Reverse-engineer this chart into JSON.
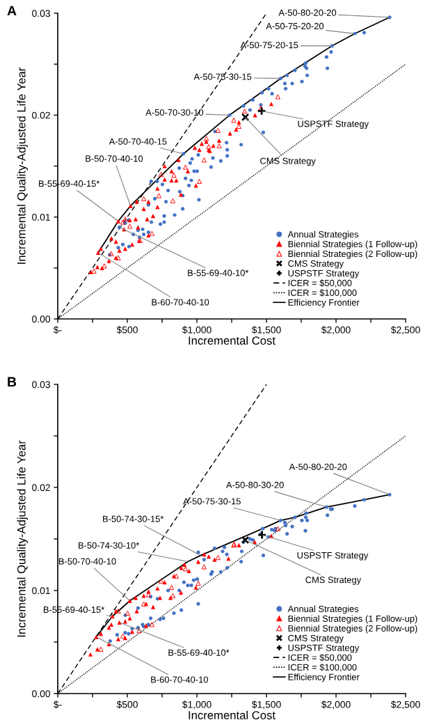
{
  "chart_data": [
    {
      "type": "scatter",
      "title": "A",
      "xlabel": "Incremental Cost",
      "ylabel": "Incremental Quality-Adjusted Life Year",
      "xlim": [
        0,
        2500
      ],
      "ylim": [
        0,
        0.03
      ],
      "xticks": [
        {
          "value": 0,
          "label": "$-"
        },
        {
          "value": 250,
          "label": null
        },
        {
          "value": 500,
          "label": "$500"
        },
        {
          "value": 750,
          "label": null
        },
        {
          "value": 1000,
          "label": "$1,000"
        },
        {
          "value": 1250,
          "label": null
        },
        {
          "value": 1500,
          "label": "$1,500"
        },
        {
          "value": 1750,
          "label": null
        },
        {
          "value": 2000,
          "label": "$2,000"
        },
        {
          "value": 2250,
          "label": null
        },
        {
          "value": 2500,
          "label": "$2,500"
        }
      ],
      "yticks": [
        {
          "value": 0,
          "label": "0.00"
        },
        {
          "value": 0.005,
          "label": null
        },
        {
          "value": 0.01,
          "label": "0.01"
        },
        {
          "value": 0.015,
          "label": null
        },
        {
          "value": 0.02,
          "label": "0.02"
        },
        {
          "value": 0.025,
          "label": null
        },
        {
          "value": 0.03,
          "label": "0.03"
        }
      ],
      "grid": false,
      "legend": "bottom right",
      "series": [
        {
          "name": "Annual Strategies",
          "marker": "circle",
          "color": "#4472c4",
          "x": [
            2385,
            2135,
            2202,
            1972,
            1965,
            1932,
            1938,
            1782,
            1777,
            1788,
            1705,
            1647,
            1602,
            1632,
            1685,
            1638,
            1793,
            1755,
            1515,
            1468,
            1540,
            1402,
            1460,
            1335,
            1382,
            1235,
            1477,
            1318,
            1218,
            1172,
            1213,
            1218,
            1130,
            1115,
            903,
            965,
            1010,
            1102,
            1002,
            980,
            873,
            952,
            918,
            960,
            943,
            793,
            752,
            877,
            898,
            1015,
            778,
            898,
            840,
            765,
            765,
            738,
            673,
            672,
            715,
            698,
            652,
            610,
            652,
            618,
            577,
            543,
            588,
            485,
            510,
            443,
            435,
            468,
            512,
            373
          ],
          "values": [
            0.0296,
            0.028,
            0.0281,
            0.0268,
            0.0262,
            0.0257,
            0.0246,
            0.0251,
            0.0248,
            0.0246,
            0.0244,
            0.0239,
            0.0236,
            0.0231,
            0.0231,
            0.0226,
            0.0239,
            0.0233,
            0.0226,
            0.0222,
            0.0221,
            0.0215,
            0.021,
            0.0209,
            0.0205,
            0.02,
            0.0183,
            0.0171,
            0.016,
            0.0155,
            0.0173,
            0.0166,
            0.0184,
            0.0158,
            0.0162,
            0.0157,
            0.0161,
            0.0149,
            0.0145,
            0.0145,
            0.0148,
            0.0153,
            0.0138,
            0.0136,
            0.0131,
            0.0126,
            0.0132,
            0.0125,
            0.0121,
            0.0117,
            0.0115,
            0.0108,
            0.0102,
            0.0101,
            0.0095,
            0.0093,
            0.0095,
            0.0135,
            0.0135,
            0.0118,
            0.0112,
            0.0088,
            0.0085,
            0.0083,
            0.0087,
            0.0083,
            0.008,
            0.0094,
            0.0097,
            0.009,
            0.007,
            0.0073,
            0.0071,
            0.0063
          ]
        },
        {
          "name": "Biennial Strategies (1 Follow-up)",
          "marker": "triangle",
          "color": "#ff0000",
          "x": [
            238,
            285,
            318,
            290,
            310,
            385,
            418,
            443,
            485,
            435,
            477,
            518,
            560,
            523,
            568,
            618,
            652,
            717,
            768,
            818,
            868,
            852,
            885,
            993,
            935,
            717,
            643,
            577,
            652,
            535,
            585,
            1068,
            1018,
            1093,
            1118,
            768,
            818,
            685,
            418,
            368,
            1535,
            1418,
            1302,
            1238,
            1282,
            1160,
            1085,
            985,
            1035
          ],
          "values": [
            0.0046,
            0.0051,
            0.005,
            0.0065,
            0.0069,
            0.0079,
            0.006,
            0.0067,
            0.0069,
            0.0096,
            0.0088,
            0.0097,
            0.0098,
            0.0111,
            0.0115,
            0.0108,
            0.0115,
            0.0128,
            0.0137,
            0.0136,
            0.0156,
            0.0136,
            0.0122,
            0.0131,
            0.0145,
            0.011,
            0.0098,
            0.009,
            0.0082,
            0.0073,
            0.0077,
            0.0174,
            0.0166,
            0.0165,
            0.017,
            0.015,
            0.0145,
            0.0101,
            0.0076,
            0.0057,
            0.0211,
            0.02,
            0.0193,
            0.0182,
            0.0186,
            0.0175,
            0.0166,
            0.0168,
            0.0172
          ]
        },
        {
          "name": "Biennial Strategies (2 Follow-up)",
          "marker": "triangle-open",
          "color": "#ff0000",
          "x": [
            1582,
            1460,
            1343,
            1265,
            1302,
            1152,
            1068,
            1085,
            1160,
            1052,
            1018,
            918,
            835,
            827,
            727,
            677,
            592,
            518,
            468,
            435,
            385,
            335,
            260,
            485,
            618,
            743
          ],
          "values": [
            0.0218,
            0.0207,
            0.0204,
            0.0195,
            0.0189,
            0.0185,
            0.0177,
            0.0169,
            0.017,
            0.0156,
            0.0135,
            0.0149,
            0.0141,
            0.0116,
            0.0121,
            0.0084,
            0.0077,
            0.0091,
            0.0095,
            0.006,
            0.0064,
            0.0052,
            0.0047,
            0.0098,
            0.0118,
            0.0142
          ]
        },
        {
          "name": "CMS Strategy",
          "marker": "cross",
          "color": "#000000",
          "x": [
            1348
          ],
          "values": [
            0.0198
          ]
        },
        {
          "name": "USPSTF Strategy",
          "marker": "plus",
          "color": "#000000",
          "x": [
            1465
          ],
          "values": [
            0.0204
          ]
        },
        {
          "name": "ICER = $50,000",
          "type": "line",
          "marker": "none",
          "line_style": "dashed",
          "color": "#000000",
          "x": [
            0,
            1500
          ],
          "values": [
            0,
            0.03
          ]
        },
        {
          "name": "ICER = $100,000",
          "type": "line",
          "marker": "none",
          "line_style": "dotted",
          "color": "#000000",
          "x": [
            0,
            2500
          ],
          "values": [
            0,
            0.025
          ]
        },
        {
          "name": "Efficiency Frontier",
          "type": "line",
          "marker": "none",
          "line_style": "solid",
          "color": "#000000",
          "x": [
            290,
            435,
            523,
            903,
            1235,
            1602,
            1972,
            2135,
            2385
          ],
          "values": [
            0.0065,
            0.0096,
            0.0111,
            0.0162,
            0.02,
            0.0236,
            0.0268,
            0.028,
            0.0296
          ]
        }
      ],
      "annotations": [
        {
          "text": "A-50-80-20-20",
          "x": 2385,
          "y": 0.0296
        },
        {
          "text": "A-50-75-20-20",
          "x": 2135,
          "y": 0.028
        },
        {
          "text": "A-50-75-20-15",
          "x": 1972,
          "y": 0.0268
        },
        {
          "text": "A-50-75-30-15",
          "x": 1602,
          "y": 0.0236
        },
        {
          "text": "A-50-70-30-10",
          "x": 1235,
          "y": 0.02
        },
        {
          "text": "A-50-70-40-15",
          "x": 903,
          "y": 0.0162
        },
        {
          "text": "USPSTF Strategy",
          "x": 1465,
          "y": 0.0204
        },
        {
          "text": "CMS Strategy",
          "x": 1348,
          "y": 0.0198
        },
        {
          "text": "B-50-70-40-10",
          "x": 523,
          "y": 0.0111
        },
        {
          "text": "B-55-69-40-15*",
          "x": 435,
          "y": 0.0096
        },
        {
          "text": "B-55-69-40-10*",
          "x": 443,
          "y": 0.009
        },
        {
          "text": "B-60-70-40-10",
          "x": 290,
          "y": 0.0065
        }
      ]
    },
    {
      "type": "scatter",
      "title": "B",
      "xlabel": "Incremental Cost",
      "ylabel": "Incremental Quality-Adjusted Life Year",
      "xlim": [
        0,
        2500
      ],
      "ylim": [
        0,
        0.03
      ],
      "xticks": [
        {
          "value": 0,
          "label": "$-"
        },
        {
          "value": 250,
          "label": null
        },
        {
          "value": 500,
          "label": "$500"
        },
        {
          "value": 750,
          "label": null
        },
        {
          "value": 1000,
          "label": "$1,000"
        },
        {
          "value": 1250,
          "label": null
        },
        {
          "value": 1500,
          "label": "$1,500"
        },
        {
          "value": 1750,
          "label": null
        },
        {
          "value": 2000,
          "label": "$2,000"
        },
        {
          "value": 2250,
          "label": null
        },
        {
          "value": 2500,
          "label": "$2,500"
        }
      ],
      "yticks": [
        {
          "value": 0,
          "label": "0.00"
        },
        {
          "value": 0.005,
          "label": null
        },
        {
          "value": 0.01,
          "label": "0.01"
        },
        {
          "value": 0.015,
          "label": null
        },
        {
          "value": 0.02,
          "label": "0.02"
        },
        {
          "value": 0.025,
          "label": null
        },
        {
          "value": 0.03,
          "label": "0.03"
        }
      ],
      "grid": false,
      "legend": "bottom right",
      "series": [
        {
          "name": "Annual Strategies",
          "marker": "circle",
          "color": "#4472c4",
          "x": [
            2385,
            2202,
            2135,
            1932,
            1962,
            1972,
            1938,
            1785,
            1705,
            1782,
            1793,
            1755,
            1780,
            1602,
            1632,
            1638,
            1685,
            1648,
            1538,
            1565,
            1560,
            1472,
            1515,
            1402,
            1335,
            1382,
            1460,
            1198,
            1127,
            1477,
            1318,
            1322,
            1218,
            1172,
            1215,
            1185,
            1110,
            1102,
            1002,
            977,
            960,
            935,
            907,
            873,
            888,
            835,
            1010,
            793,
            760,
            735,
            668,
            652,
            610,
            618,
            577,
            535,
            485,
            510,
            427,
            377,
            485,
            577,
            668,
            717,
            1010,
            1052
          ],
          "values": [
            0.0193,
            0.0188,
            0.0182,
            0.0181,
            0.0179,
            0.0179,
            0.0173,
            0.0175,
            0.0171,
            0.0171,
            0.0168,
            0.0168,
            0.0158,
            0.0168,
            0.0166,
            0.0163,
            0.0162,
            0.0155,
            0.0159,
            0.016,
            0.0158,
            0.016,
            0.0152,
            0.0149,
            0.0147,
            0.015,
            0.0155,
            0.0142,
            0.0141,
            0.0134,
            0.0128,
            0.0138,
            0.0122,
            0.0118,
            0.0135,
            0.0138,
            0.0118,
            0.0116,
            0.0111,
            0.011,
            0.0105,
            0.0105,
            0.0108,
            0.01,
            0.0081,
            0.0078,
            0.0087,
            0.01,
            0.0073,
            0.0072,
            0.0073,
            0.0067,
            0.0067,
            0.0065,
            0.0064,
            0.0063,
            0.0059,
            0.0058,
            0.0057,
            0.0051,
            0.0076,
            0.0083,
            0.0094,
            0.0092,
            0.0137,
            0.013
          ]
        },
        {
          "name": "Biennial Strategies (1 Follow-up)",
          "marker": "triangle",
          "color": "#ff0000",
          "x": [
            235,
            285,
            277,
            310,
            368,
            393,
            418,
            518,
            560,
            618,
            652,
            717,
            768,
            835,
            888,
            910,
            943,
            1010,
            1085,
            1127,
            1227,
            485,
            443,
            385,
            518,
            568,
            635,
            735,
            810,
            885,
            993,
            368,
            435,
            485,
            535,
            635,
            685,
            1052,
            1535,
            1415,
            1302
          ],
          "values": [
            0.0038,
            0.0043,
            0.0055,
            0.0058,
            0.0064,
            0.0075,
            0.008,
            0.009,
            0.0093,
            0.0095,
            0.0099,
            0.0102,
            0.0108,
            0.0114,
            0.0122,
            0.0125,
            0.0119,
            0.0128,
            0.0133,
            0.013,
            0.0131,
            0.007,
            0.0069,
            0.0067,
            0.0073,
            0.008,
            0.0087,
            0.0093,
            0.0093,
            0.0098,
            0.0103,
            0.0048,
            0.0053,
            0.0054,
            0.006,
            0.0066,
            0.0084,
            0.0135,
            0.0153,
            0.0147,
            0.0144
          ]
        },
        {
          "name": "Biennial Strategies (2 Follow-up)",
          "marker": "triangle-open",
          "color": "#ff0000",
          "x": [
            1582,
            1265,
            1010,
            827,
            677,
            585,
            468,
            310,
            435,
            502,
            652,
            743,
            852,
            918,
            1052,
            1152,
            1268,
            818,
            618
          ],
          "values": [
            0.016,
            0.0144,
            0.0107,
            0.0095,
            0.0067,
            0.0061,
            0.0056,
            0.0043,
            0.008,
            0.0078,
            0.0096,
            0.0109,
            0.0114,
            0.0121,
            0.0123,
            0.0132,
            0.0145,
            0.0103,
            0.0087
          ]
        },
        {
          "name": "CMS Strategy",
          "marker": "cross",
          "color": "#000000",
          "x": [
            1348
          ],
          "values": [
            0.0149
          ]
        },
        {
          "name": "USPSTF Strategy",
          "marker": "plus",
          "color": "#000000",
          "x": [
            1468
          ],
          "values": [
            0.0154
          ]
        },
        {
          "name": "ICER = $50,000",
          "type": "line",
          "marker": "none",
          "line_style": "dashed",
          "color": "#000000",
          "x": [
            0,
            1500
          ],
          "values": [
            0,
            0.03
          ]
        },
        {
          "name": "ICER = $100,000",
          "type": "line",
          "marker": "none",
          "line_style": "dotted",
          "color": "#000000",
          "x": [
            0,
            2500
          ],
          "values": [
            0,
            0.025
          ]
        },
        {
          "name": "Efficiency Frontier",
          "type": "line",
          "marker": "none",
          "line_style": "solid",
          "color": "#000000",
          "x": [
            277,
            393,
            518,
            935,
            1027,
            1472,
            1602,
            1705,
            1932,
            2202,
            2385
          ],
          "values": [
            0.0055,
            0.0075,
            0.009,
            0.0128,
            0.0134,
            0.016,
            0.0168,
            0.0171,
            0.0181,
            0.0188,
            0.0193
          ]
        }
      ],
      "annotations": [
        {
          "text": "A-50-80-20-20",
          "x": 2385,
          "y": 0.0193
        },
        {
          "text": "A-50-80-30-20",
          "x": 1932,
          "y": 0.0181
        },
        {
          "text": "A-50-75-30-15",
          "x": 1602,
          "y": 0.0168
        },
        {
          "text": "B-50-74-30-15*",
          "x": 1027,
          "y": 0.0134
        },
        {
          "text": "B-50-74-30-10*",
          "x": 935,
          "y": 0.0128
        },
        {
          "text": "B-50-70-40-10",
          "x": 518,
          "y": 0.009
        },
        {
          "text": "B-55-69-40-15*",
          "x": 393,
          "y": 0.0075
        },
        {
          "text": "B-55-69-40-10*",
          "x": 443,
          "y": 0.0069
        },
        {
          "text": "B-60-70-40-10",
          "x": 277,
          "y": 0.0055
        },
        {
          "text": "USPSTF Strategy",
          "x": 1468,
          "y": 0.0154
        },
        {
          "text": "CMS Strategy",
          "x": 1348,
          "y": 0.0149
        }
      ]
    }
  ]
}
